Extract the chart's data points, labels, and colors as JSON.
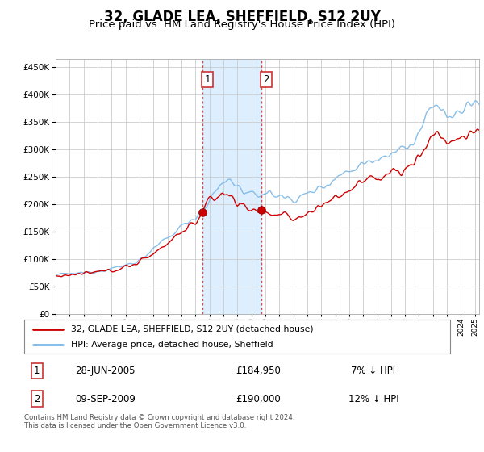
{
  "title": "32, GLADE LEA, SHEFFIELD, S12 2UY",
  "subtitle": "Price paid vs. HM Land Registry's House Price Index (HPI)",
  "title_fontsize": 12,
  "subtitle_fontsize": 9.5,
  "ytick_values": [
    0,
    50000,
    100000,
    150000,
    200000,
    250000,
    300000,
    350000,
    400000,
    450000
  ],
  "ylim": [
    0,
    465000
  ],
  "xlim_start": 1995.0,
  "xlim_end": 2025.3,
  "hpi_color": "#7ab8e8",
  "price_color": "#cc0000",
  "shade_color": "#ddeeff",
  "vline_color": "#dd4444",
  "legend_label_price": "32, GLADE LEA, SHEFFIELD, S12 2UY (detached house)",
  "legend_label_hpi": "HPI: Average price, detached house, Sheffield",
  "transaction1_date": 2005.49,
  "transaction1_price": 184950,
  "transaction2_date": 2009.69,
  "transaction2_price": 190000,
  "annotation1": "28-JUN-2005",
  "annotation1_price": "£184,950",
  "annotation1_pct": "7% ↓ HPI",
  "annotation2": "09-SEP-2009",
  "annotation2_price": "£190,000",
  "annotation2_pct": "12% ↓ HPI",
  "footnote": "Contains HM Land Registry data © Crown copyright and database right 2024.\nThis data is licensed under the Open Government Licence v3.0.",
  "background_color": "#ffffff",
  "grid_color": "#cccccc"
}
